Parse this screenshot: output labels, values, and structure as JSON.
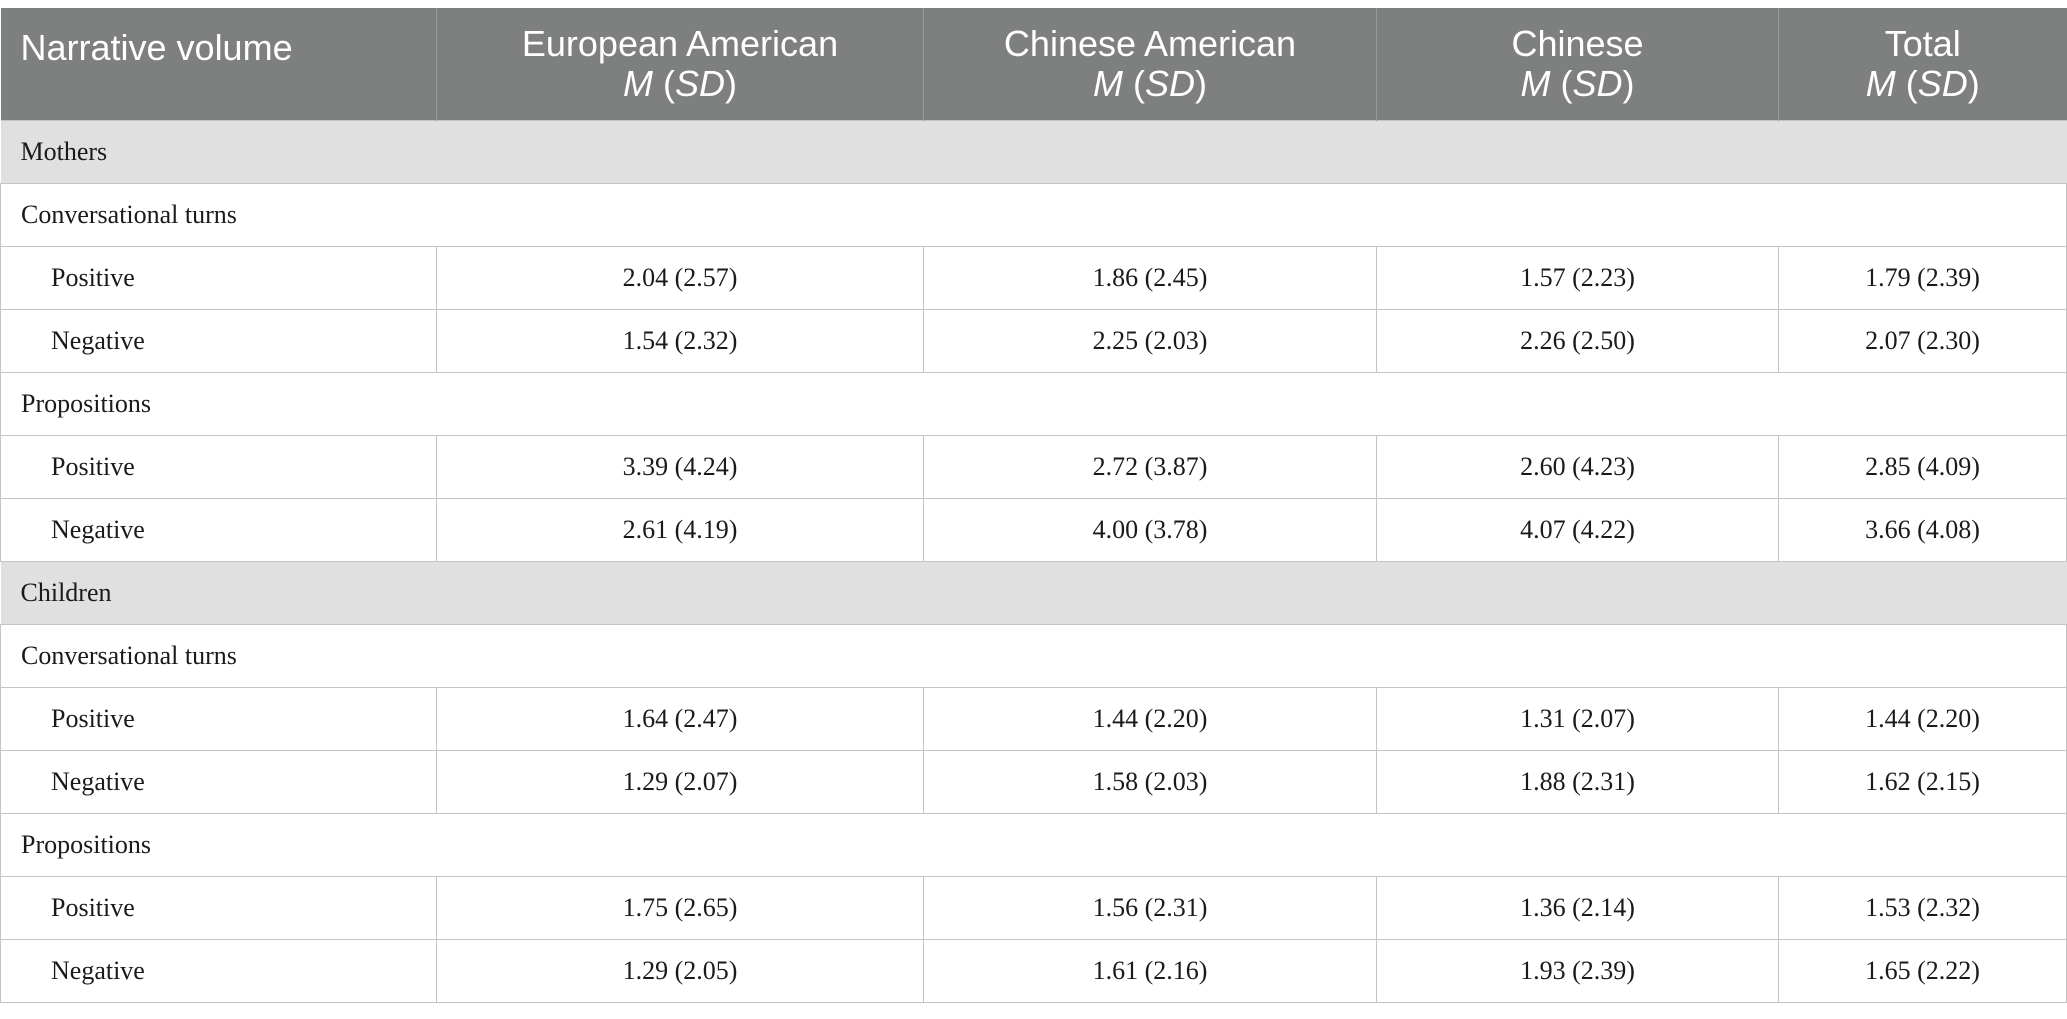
{
  "header": {
    "col0": "Narrative volume",
    "groups": [
      {
        "name": "European American",
        "stat_m": "M",
        "stat_sd": "SD"
      },
      {
        "name": "Chinese American",
        "stat_m": "M",
        "stat_sd": "SD"
      },
      {
        "name": "Chinese",
        "stat_m": "M",
        "stat_sd": "SD"
      },
      {
        "name": "Total",
        "stat_m": "M",
        "stat_sd": "SD"
      }
    ]
  },
  "sections": [
    {
      "title": "Mothers",
      "groups": [
        {
          "title": "Conversational turns",
          "rows": [
            {
              "label": "Positive",
              "values": [
                "2.04 (2.57)",
                "1.86 (2.45)",
                "1.57 (2.23)",
                "1.79 (2.39)"
              ]
            },
            {
              "label": "Negative",
              "values": [
                "1.54 (2.32)",
                "2.25 (2.03)",
                "2.26 (2.50)",
                "2.07 (2.30)"
              ]
            }
          ]
        },
        {
          "title": "Propositions",
          "rows": [
            {
              "label": "Positive",
              "values": [
                "3.39 (4.24)",
                "2.72 (3.87)",
                "2.60 (4.23)",
                "2.85 (4.09)"
              ]
            },
            {
              "label": "Negative",
              "values": [
                "2.61 (4.19)",
                "4.00 (3.78)",
                "4.07 (4.22)",
                "3.66 (4.08)"
              ]
            }
          ]
        }
      ]
    },
    {
      "title": "Children",
      "groups": [
        {
          "title": "Conversational turns",
          "rows": [
            {
              "label": "Positive",
              "values": [
                "1.64 (2.47)",
                "1.44 (2.20)",
                "1.31 (2.07)",
                "1.44 (2.20)"
              ]
            },
            {
              "label": "Negative",
              "values": [
                "1.29 (2.07)",
                "1.58 (2.03)",
                "1.88 (2.31)",
                "1.62 (2.15)"
              ]
            }
          ]
        },
        {
          "title": "Propositions",
          "rows": [
            {
              "label": "Positive",
              "values": [
                "1.75 (2.65)",
                "1.56 (2.31)",
                "1.36 (2.14)",
                "1.53 (2.32)"
              ]
            },
            {
              "label": "Negative",
              "values": [
                "1.29 (2.05)",
                "1.61 (2.16)",
                "1.93 (2.39)",
                "1.65 (2.22)"
              ]
            }
          ]
        }
      ]
    }
  ]
}
